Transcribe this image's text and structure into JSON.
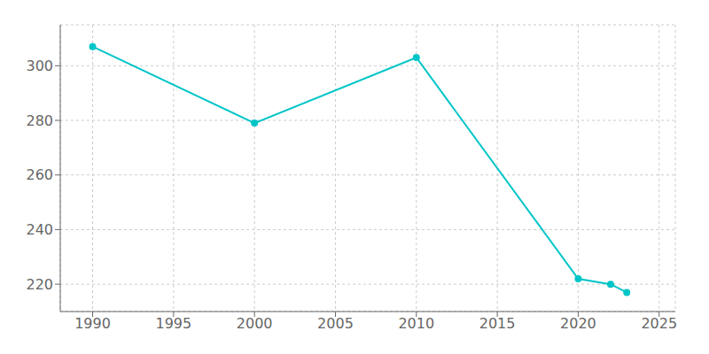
{
  "chart_data": {
    "type": "line",
    "x": [
      1990,
      2000,
      2010,
      2020,
      2022,
      2023
    ],
    "values": [
      307,
      279,
      303,
      222,
      220,
      217
    ],
    "color": "#00C5C8",
    "marker": "circle",
    "xlim": [
      1988,
      2026
    ],
    "ylim": [
      210,
      315
    ],
    "xticks": [
      1990,
      1995,
      2000,
      2005,
      2010,
      2015,
      2020,
      2025
    ],
    "yticks": [
      220,
      240,
      260,
      280,
      300
    ],
    "grid": true
  }
}
